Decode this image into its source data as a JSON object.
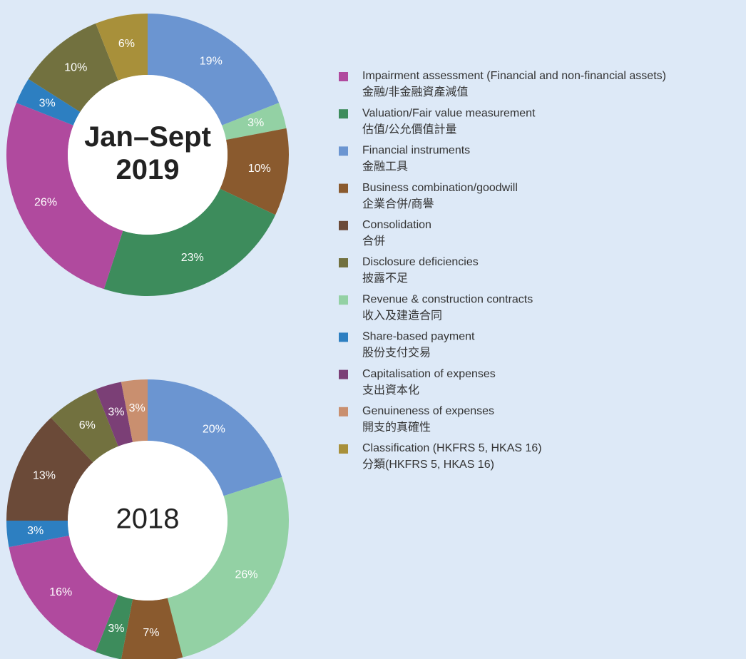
{
  "chart_data": [
    {
      "type": "pie",
      "title": "Jan–Sept 2019",
      "title_bold": true,
      "values": [
        19,
        3,
        10,
        23,
        26,
        3,
        10,
        6
      ],
      "value_labels": [
        "19%",
        "3%",
        "10%",
        "23%",
        "26%",
        "3%",
        "10%",
        "6%"
      ],
      "colors": [
        "#6b95d1",
        "#93d1a4",
        "#8a5a2e",
        "#3d8c5c",
        "#b04a9e",
        "#2d7fc1",
        "#72713f",
        "#a8903a"
      ]
    },
    {
      "type": "pie",
      "title": "2018",
      "title_bold": false,
      "values": [
        20,
        26,
        7,
        3,
        16,
        3,
        13,
        6,
        3,
        3
      ],
      "value_labels": [
        "20%",
        "26%",
        "7%",
        "3%",
        "16%",
        "3%",
        "13%",
        "6%",
        "3%",
        "3%"
      ],
      "colors": [
        "#6b95d1",
        "#93d1a4",
        "#8a5a2e",
        "#3d8c5c",
        "#b04a9e",
        "#2d7fc1",
        "#6b4a38",
        "#72713f",
        "#7b3f76",
        "#c98f6f"
      ]
    }
  ],
  "legend": [
    {
      "name": "Impairment assessment (Financial and non-financial assets)",
      "name_zh": "金融/非金融資產減值",
      "color": "#b04a9e"
    },
    {
      "name": "Valuation/Fair value measurement",
      "name_zh": "估值/公允價值計量",
      "color": "#3d8c5c"
    },
    {
      "name": "Financial instruments",
      "name_zh": "金融工具",
      "color": "#6b95d1"
    },
    {
      "name": "Business combination/goodwill",
      "name_zh": "企業合併/商譽",
      "color": "#8a5a2e"
    },
    {
      "name": "Consolidation",
      "name_zh": "合併",
      "color": "#6b4a38"
    },
    {
      "name": "Disclosure deficiencies",
      "name_zh": "披露不足",
      "color": "#72713f"
    },
    {
      "name": "Revenue & construction contracts",
      "name_zh": "收入及建造合同",
      "color": "#93d1a4"
    },
    {
      "name": "Share-based payment",
      "name_zh": "股份支付交易",
      "color": "#2d7fc1"
    },
    {
      "name": "Capitalisation of expenses",
      "name_zh": "支出資本化",
      "color": "#7b3f76"
    },
    {
      "name": "Genuineness of expenses",
      "name_zh": "開支的真確性",
      "color": "#c98f6f"
    },
    {
      "name": "Classification (HKFRS 5, HKAS 16)",
      "name_zh": "分類(HKFRS 5, HKAS 16)",
      "color": "#a8903a"
    }
  ]
}
